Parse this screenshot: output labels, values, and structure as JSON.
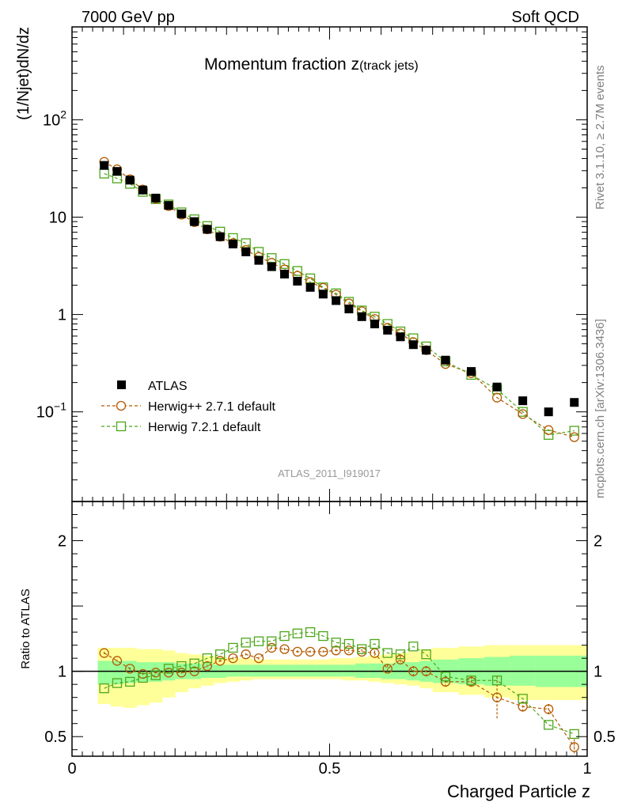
{
  "header": {
    "left": "7000 GeV pp",
    "right": "Soft QCD"
  },
  "chart_data": [
    {
      "type": "scatter",
      "panel": "main",
      "title": "Momentum fraction z(track jets)",
      "title_main": "Momentum fraction z",
      "title_sub": "(track jets)",
      "ylabel": "(1/Njet)dN/dz",
      "xlabel": "Charged Particle z",
      "yscale": "log",
      "xlim": [
        0,
        1
      ],
      "ylim": [
        0.012,
        900
      ],
      "yticks": [
        {
          "value": 0.1,
          "base": "10",
          "exp": "−1"
        },
        {
          "value": 1,
          "label": "1"
        },
        {
          "value": 10,
          "label": "10"
        },
        {
          "value": 100,
          "base": "10",
          "exp": "2"
        }
      ],
      "x": [
        0.0625,
        0.0875,
        0.1125,
        0.1375,
        0.1625,
        0.1875,
        0.2125,
        0.2375,
        0.2625,
        0.2875,
        0.3125,
        0.3375,
        0.3625,
        0.3875,
        0.4125,
        0.4375,
        0.4625,
        0.4875,
        0.5125,
        0.5375,
        0.5625,
        0.5875,
        0.6125,
        0.6375,
        0.6625,
        0.6875,
        0.725,
        0.775,
        0.825,
        0.875,
        0.925,
        0.975
      ],
      "series": [
        {
          "name": "ATLAS",
          "marker": "filled-square",
          "color": "#000000",
          "values": [
            34,
            29.5,
            24,
            19,
            15.7,
            13.2,
            10.8,
            9.0,
            7.5,
            6.3,
            5.3,
            4.4,
            3.6,
            3.1,
            2.6,
            2.2,
            1.9,
            1.62,
            1.39,
            1.14,
            0.95,
            0.8,
            0.69,
            0.59,
            0.49,
            0.43,
            0.34,
            0.26,
            0.18,
            0.13,
            0.1,
            0.125
          ]
        },
        {
          "name": "Herwig++ 2.7.1 default",
          "marker": "open-circle",
          "color": "#b35900",
          "values": [
            37,
            31,
            24.5,
            19.2,
            15.5,
            13.0,
            10.6,
            8.9,
            7.5,
            6.3,
            5.4,
            4.6,
            3.9,
            3.4,
            2.9,
            2.5,
            2.15,
            1.88,
            1.6,
            1.3,
            1.08,
            0.9,
            0.73,
            0.64,
            0.52,
            0.43,
            0.31,
            0.25,
            0.14,
            0.095,
            0.065,
            0.055
          ]
        },
        {
          "name": "Herwig 7.2.1 default",
          "marker": "open-square",
          "color": "#4da619",
          "values": [
            28,
            25,
            22,
            18.2,
            15.3,
            13.5,
            11.2,
            9.5,
            8.1,
            7.1,
            6.1,
            5.4,
            4.4,
            3.8,
            3.3,
            2.8,
            2.35,
            1.9,
            1.65,
            1.35,
            1.1,
            0.95,
            0.8,
            0.67,
            0.57,
            0.47,
            0.33,
            0.24,
            0.17,
            0.1,
            0.058,
            0.064
          ]
        }
      ],
      "legend_location": "lower-left",
      "watermark": "ATLAS_2011_I919017",
      "side_right_top": "Rivet 3.1.10, ≥ 2.7M events",
      "side_right_bottom": "mcplots.cern.ch [arXiv:1306.3436]"
    },
    {
      "type": "scatter",
      "panel": "ratio",
      "ylabel": "Ratio to ATLAS",
      "xlabel": "Charged Particle z",
      "xlim": [
        0,
        1
      ],
      "ylim": [
        0.35,
        2.3
      ],
      "xticks": [
        {
          "value": 0,
          "label": "0"
        },
        {
          "value": 0.5,
          "label": "0.5"
        },
        {
          "value": 1,
          "label": "1"
        }
      ],
      "yticks": [
        {
          "value": 0.5,
          "label": "0.5"
        },
        {
          "value": 1,
          "label": "1"
        },
        {
          "value": 2,
          "label": "2"
        }
      ],
      "bins": [
        0.05,
        0.075,
        0.1,
        0.125,
        0.15,
        0.175,
        0.2,
        0.225,
        0.25,
        0.275,
        0.3,
        0.325,
        0.35,
        0.375,
        0.4,
        0.425,
        0.45,
        0.475,
        0.5,
        0.525,
        0.55,
        0.575,
        0.6,
        0.625,
        0.65,
        0.675,
        0.7,
        0.75,
        0.8,
        0.85,
        0.9,
        0.95,
        1.0
      ],
      "band_inner_low": [
        0.9,
        0.9,
        0.91,
        0.92,
        0.92,
        0.93,
        0.94,
        0.94,
        0.95,
        0.95,
        0.96,
        0.96,
        0.96,
        0.96,
        0.96,
        0.96,
        0.96,
        0.96,
        0.96,
        0.96,
        0.95,
        0.95,
        0.94,
        0.94,
        0.93,
        0.92,
        0.91,
        0.9,
        0.89,
        0.89,
        0.88,
        0.88
      ],
      "band_inner_high": [
        1.08,
        1.08,
        1.08,
        1.07,
        1.07,
        1.07,
        1.06,
        1.06,
        1.06,
        1.05,
        1.05,
        1.05,
        1.05,
        1.05,
        1.05,
        1.05,
        1.05,
        1.05,
        1.05,
        1.05,
        1.06,
        1.06,
        1.06,
        1.07,
        1.07,
        1.08,
        1.09,
        1.1,
        1.11,
        1.12,
        1.12,
        1.12
      ],
      "band_outer_low": [
        0.75,
        0.73,
        0.72,
        0.74,
        0.76,
        0.8,
        0.84,
        0.87,
        0.89,
        0.91,
        0.92,
        0.93,
        0.94,
        0.94,
        0.94,
        0.94,
        0.94,
        0.94,
        0.94,
        0.93,
        0.93,
        0.92,
        0.91,
        0.9,
        0.89,
        0.87,
        0.84,
        0.82,
        0.8,
        0.78,
        0.78,
        0.78
      ],
      "band_outer_high": [
        1.18,
        1.18,
        1.18,
        1.17,
        1.17,
        1.16,
        1.14,
        1.13,
        1.12,
        1.11,
        1.1,
        1.1,
        1.09,
        1.09,
        1.09,
        1.09,
        1.09,
        1.09,
        1.1,
        1.1,
        1.11,
        1.12,
        1.13,
        1.14,
        1.15,
        1.17,
        1.18,
        1.19,
        1.2,
        1.2,
        1.2,
        1.2
      ],
      "series": [
        {
          "name": "Herwig++ 2.7.1 default",
          "color": "#b35900",
          "marker": "open-circle",
          "values": [
            1.14,
            1.08,
            1.02,
            0.98,
            0.99,
            0.99,
            0.99,
            1.0,
            1.04,
            1.08,
            1.1,
            1.13,
            1.1,
            1.18,
            1.17,
            1.15,
            1.15,
            1.15,
            1.16,
            1.16,
            1.15,
            1.14,
            1.02,
            1.09,
            1.0,
            1.0,
            0.92,
            0.92,
            0.8,
            0.73,
            0.71,
            0.42
          ],
          "err": [
            0.01,
            0.01,
            0.01,
            0.01,
            0.01,
            0.01,
            0.01,
            0.01,
            0.01,
            0.01,
            0.01,
            0.01,
            0.01,
            0.01,
            0.01,
            0.01,
            0.01,
            0.01,
            0.01,
            0.02,
            0.02,
            0.02,
            0.03,
            0.03,
            0.04,
            0.04,
            0.04,
            0.04,
            0.16,
            0.04,
            0.04,
            0.06
          ]
        },
        {
          "name": "Herwig 7.2.1 default",
          "color": "#4da619",
          "marker": "open-square",
          "values": [
            0.87,
            0.91,
            0.92,
            0.95,
            0.97,
            1.02,
            1.04,
            1.06,
            1.1,
            1.13,
            1.18,
            1.22,
            1.23,
            1.23,
            1.27,
            1.29,
            1.3,
            1.27,
            1.22,
            1.21,
            1.17,
            1.21,
            1.14,
            1.13,
            1.19,
            1.13,
            0.96,
            0.93,
            0.93,
            0.79,
            0.59,
            0.52
          ]
        }
      ]
    }
  ]
}
